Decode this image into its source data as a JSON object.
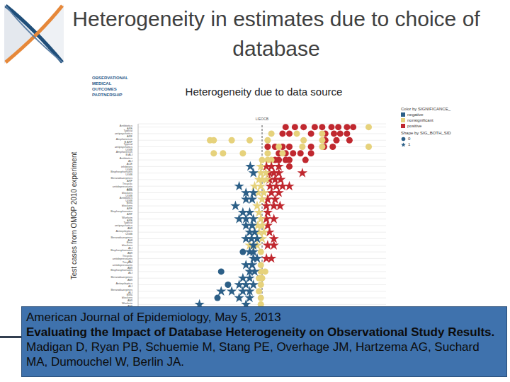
{
  "slide": {
    "title": "Heterogeneity in estimates due to choice of database",
    "logo_text": [
      "OBSERVATIONAL",
      "MEDICAL",
      "OUTCOMES",
      "PARTNERSHIP"
    ],
    "citation": {
      "journal": "American Journal of Epidemiology, May 5, 2013",
      "article": "Evaluating the Impact of Database Heterogeneity on Observational Study Results.",
      "authors": "Madigan D, Ryan PB, Schuemie M, Stang PE, Overhage JM, Hartzema AG, Suchard MA, Dumouchel W, Berlin JA."
    }
  },
  "chart_data": {
    "type": "scatter",
    "title": "Heterogeneity due to data source",
    "y_label": "Test cases from OMOP 2010 experiment",
    "tick_labels": "y",
    "grid": true,
    "xlim": [
      -2,
      2
    ],
    "reference_line": {
      "x": 0,
      "label": "LIEOCB"
    },
    "categories": [
      "Antibiotics ARF",
      "Typical antipsychotics ARF",
      "Amphotericin B ARF",
      "Typical antipsychotics UGIB",
      "Amphotericin B ALI",
      "Antibiotics ALI",
      "ACE inhibitors UGIB",
      "Bisphosphonates UGIB",
      "Benzodiazepines ARF",
      "Tricyclic antidepressants ARF",
      "Beta blockers UGIB",
      "Antibiotics UGIB",
      "Beta blockers ARF",
      "Bisphosphonates ARF",
      "Warfarin ARF",
      "Typical antipsychotics AMI",
      "Antiepileptics UGIB",
      "Benzodiazepines AHI",
      "Beta blockers ALI",
      "Bisphosphonates AMI",
      "Tricyclic antidepressants ALI",
      "Tricyclic antidepressants AMI",
      "Bisphosphonates ALI",
      "Benzodiazepines AMI",
      "Antiepileptics ALI",
      "Benzodiazepines ALI",
      "Beta blockers AMI",
      "Warfarin AMI"
    ],
    "color_legend": {
      "title": "Color by SIGNIFICANCE_",
      "items": [
        {
          "name": "negative",
          "color": "#2c5f87"
        },
        {
          "name": "nonsignificant",
          "color": "#e6d27c"
        },
        {
          "name": "positive",
          "color": "#c0282f"
        }
      ]
    },
    "shape_legend": {
      "title": "Shape by SIG_BOTH_SID",
      "items": [
        {
          "name": "0",
          "marker": "circle"
        },
        {
          "name": "1",
          "marker": "star"
        }
      ]
    },
    "series": [
      {
        "color_by": "positive",
        "shape_by": "0",
        "x": [
          0.38,
          0.53,
          0.67,
          0.85,
          0.97,
          1.12,
          1.23,
          1.37,
          1.47,
          0.33,
          0.44,
          0.79,
          1.02,
          1.16,
          1.26,
          1.37,
          1.02,
          1.2,
          1.41,
          0.09,
          0.21,
          0.33,
          0.44,
          0.79,
          1.0,
          1.14,
          0.27,
          0.38,
          0.5,
          0.62,
          0.79,
          0.21,
          0.27,
          0.38,
          0.44,
          0.7,
          0.44
        ],
        "y": [
          0,
          0,
          0,
          0,
          0,
          0,
          0,
          0,
          0,
          1,
          1,
          1,
          1,
          1,
          1,
          1,
          2,
          2,
          2,
          3,
          3,
          3,
          3,
          3,
          3,
          3,
          4,
          4,
          4,
          4,
          4,
          5,
          5,
          5,
          5,
          5,
          6
        ]
      },
      {
        "color_by": "nonsignificant",
        "shape_by": "0",
        "x": [
          1.72,
          0.15,
          0.56,
          0.97,
          -0.84,
          -0.78,
          -0.49,
          -0.2,
          0.09,
          0.67,
          0.97,
          0.27,
          0.65,
          0.97,
          1.72,
          -0.78,
          -0.63,
          -0.31,
          0.09,
          0.33,
          0.0,
          0.09,
          0.15,
          -0.02,
          -0.02,
          -0.02,
          0.05,
          -0.05,
          0.0,
          -0.02,
          -0.05,
          -0.02,
          -0.02
        ],
        "y": [
          0,
          1,
          1,
          1,
          2,
          2,
          2,
          2,
          2,
          2,
          2,
          3,
          3,
          3,
          3,
          4,
          4,
          4,
          4,
          4,
          5,
          5,
          5,
          19,
          21,
          22,
          22,
          23,
          23,
          24,
          25,
          26,
          27
        ]
      },
      {
        "color_by": "negative",
        "shape_by": "0",
        "x": [
          -0.31,
          -0.66,
          -0.55,
          -0.72
        ],
        "y": [
          19,
          22,
          24,
          26
        ]
      },
      {
        "color_by": "positive",
        "shape_by": "1",
        "x": [
          0.07,
          0.15,
          0.27,
          0.12,
          0.19,
          0.27,
          0.65,
          0.12,
          0.21,
          0.3,
          0.13,
          0.23,
          0.33,
          0.44,
          0.15,
          0.27,
          0.09,
          0.21,
          0.07,
          0.19,
          0.29,
          0.09,
          0.07,
          0.19,
          0.09,
          0.12,
          0.19,
          0.09,
          0.19,
          0.07,
          0.15
        ],
        "y": [
          6,
          6,
          6,
          7,
          7,
          7,
          7,
          8,
          8,
          8,
          9,
          9,
          9,
          9,
          10,
          10,
          11,
          11,
          12,
          12,
          12,
          13,
          14,
          14,
          15,
          16,
          17,
          18,
          18,
          20,
          20
        ]
      },
      {
        "color_by": "nonsignificant",
        "shape_by": "1",
        "x": [
          -0.02,
          -0.02,
          0.06,
          -0.05,
          0.0,
          0.07,
          -0.12,
          -0.02,
          -0.06,
          0.03,
          0.0,
          -0.08,
          -0.05,
          -0.02,
          -0.07,
          0.0,
          -0.05,
          0.03,
          0.0,
          -0.2,
          -0.08
        ],
        "y": [
          6,
          7,
          7,
          8,
          8,
          8,
          9,
          9,
          10,
          10,
          11,
          12,
          13,
          14,
          15,
          15,
          16,
          16,
          17,
          18,
          18
        ]
      },
      {
        "color_by": "negative",
        "shape_by": "1",
        "x": [
          -0.19,
          -0.14,
          -0.37,
          -0.26,
          -0.14,
          -0.26,
          -0.16,
          -0.43,
          -0.31,
          -0.2,
          -0.37,
          -0.26,
          -0.14,
          -0.26,
          -0.16,
          -0.2,
          -0.12,
          -0.26,
          -0.17,
          -0.08,
          -0.14,
          -0.2,
          -0.14,
          -0.14,
          -0.08,
          -0.26,
          -0.16,
          -0.2,
          -0.12,
          -0.31,
          -0.2,
          -0.37,
          -0.26,
          -0.14,
          -0.66,
          -0.49,
          -0.31,
          -0.2,
          -0.37,
          -0.2,
          -1.01,
          -0.26
        ],
        "y": [
          6,
          7,
          9,
          10,
          10,
          11,
          11,
          12,
          13,
          13,
          14,
          14,
          14,
          15,
          15,
          16,
          16,
          17,
          17,
          17,
          18,
          19,
          19,
          20,
          20,
          21,
          21,
          22,
          22,
          23,
          23,
          24,
          24,
          24,
          25,
          25,
          25,
          25,
          26,
          26,
          27,
          27
        ]
      }
    ]
  }
}
